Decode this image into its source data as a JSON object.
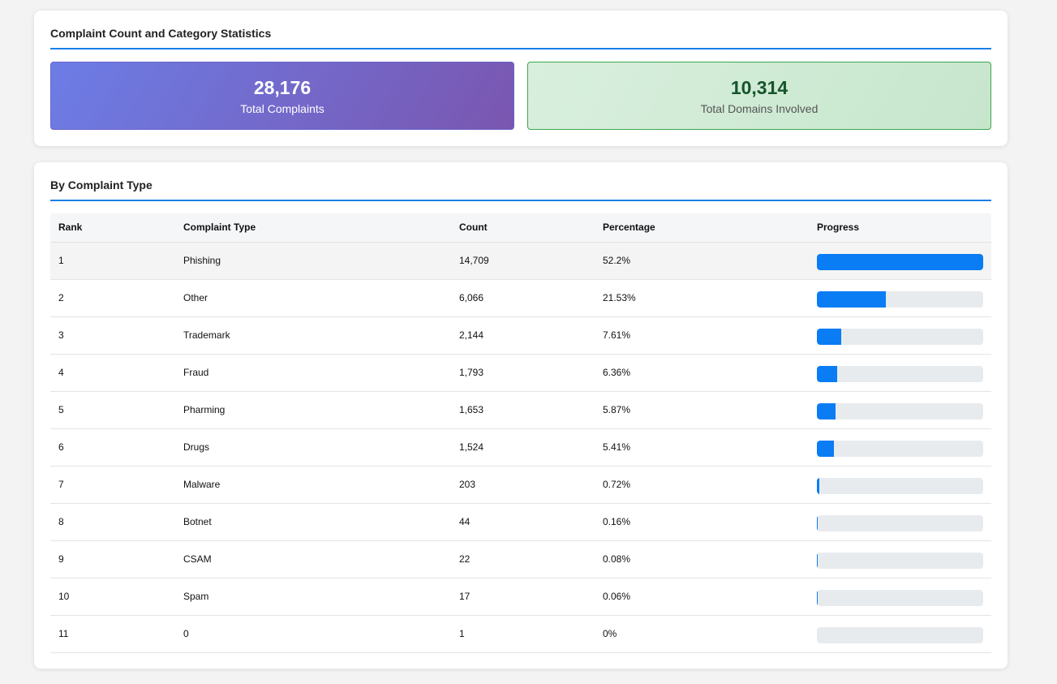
{
  "stats_section": {
    "title": "Complaint Count and Category Statistics",
    "total_complaints": {
      "value": "28,176",
      "label": "Total Complaints"
    },
    "total_domains": {
      "value": "10,314",
      "label": "Total Domains Involved"
    }
  },
  "types_section": {
    "title": "By Complaint Type",
    "columns": [
      "Rank",
      "Complaint Type",
      "Count",
      "Percentage",
      "Progress"
    ],
    "rows": [
      {
        "rank": "1",
        "type": "Phishing",
        "count": "14,709",
        "percentage": "52.2%",
        "progress_fraction": 1.0
      },
      {
        "rank": "2",
        "type": "Other",
        "count": "6,066",
        "percentage": "21.53%",
        "progress_fraction": 0.4124
      },
      {
        "rank": "3",
        "type": "Trademark",
        "count": "2,144",
        "percentage": "7.61%",
        "progress_fraction": 0.1458
      },
      {
        "rank": "4",
        "type": "Fraud",
        "count": "1,793",
        "percentage": "6.36%",
        "progress_fraction": 0.1219
      },
      {
        "rank": "5",
        "type": "Pharming",
        "count": "1,653",
        "percentage": "5.87%",
        "progress_fraction": 0.1124
      },
      {
        "rank": "6",
        "type": "Drugs",
        "count": "1,524",
        "percentage": "5.41%",
        "progress_fraction": 0.1036
      },
      {
        "rank": "7",
        "type": "Malware",
        "count": "203",
        "percentage": "0.72%",
        "progress_fraction": 0.0138
      },
      {
        "rank": "8",
        "type": "Botnet",
        "count": "44",
        "percentage": "0.16%",
        "progress_fraction": 0.0031
      },
      {
        "rank": "9",
        "type": "CSAM",
        "count": "22",
        "percentage": "0.08%",
        "progress_fraction": 0.0015
      },
      {
        "rank": "10",
        "type": "Spam",
        "count": "17",
        "percentage": "0.06%",
        "progress_fraction": 0.0011
      },
      {
        "rank": "11",
        "type": "0",
        "count": "1",
        "percentage": "0%",
        "progress_fraction": 0.0
      }
    ]
  },
  "colors": {
    "accent": "#1a7fe6",
    "bar_fill": "#0a7cf4",
    "bar_track": "#e8ebee"
  }
}
